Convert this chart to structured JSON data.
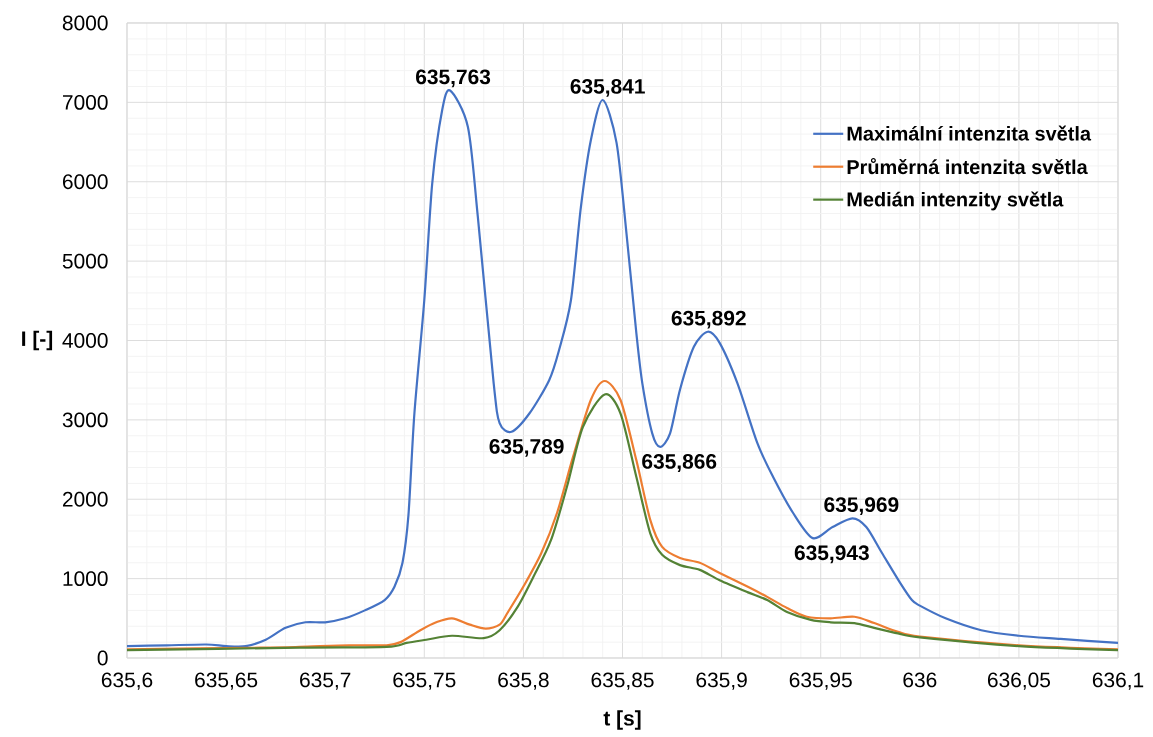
{
  "chart_data": {
    "type": "line",
    "xlabel": "t [s]",
    "ylabel": "I [-]",
    "xlim": [
      635.6,
      636.1
    ],
    "xticks": [
      {
        "value": 635.6,
        "label": "635,6"
      },
      {
        "value": 635.65,
        "label": "635,65"
      },
      {
        "value": 635.7,
        "label": "635,7"
      },
      {
        "value": 635.75,
        "label": "635,75"
      },
      {
        "value": 635.8,
        "label": "635,8"
      },
      {
        "value": 635.85,
        "label": "635,85"
      },
      {
        "value": 635.9,
        "label": "635,9"
      },
      {
        "value": 635.95,
        "label": "635,95"
      },
      {
        "value": 636,
        "label": "636"
      },
      {
        "value": 636.05,
        "label": "636,05"
      },
      {
        "value": 636.1,
        "label": "636,1"
      }
    ],
    "ylim": [
      0,
      8000
    ],
    "yticks": [
      0,
      1000,
      2000,
      3000,
      4000,
      5000,
      6000,
      7000,
      8000
    ],
    "grid": true,
    "legend": "top right",
    "series": [
      {
        "name": "Maximální intenzita světla",
        "color": "#4472c4",
        "x": [
          635.6,
          635.62,
          635.64,
          635.65,
          635.66,
          635.67,
          635.68,
          635.69,
          635.7,
          635.71,
          635.72,
          635.73,
          635.735,
          635.739,
          635.742,
          635.745,
          635.75,
          635.754,
          635.759,
          635.763,
          635.772,
          635.777,
          635.785,
          635.788,
          635.794,
          635.803,
          635.813,
          635.818,
          635.824,
          635.829,
          635.834,
          635.84,
          635.847,
          635.852,
          635.857,
          635.86,
          635.865,
          635.869,
          635.874,
          635.879,
          635.886,
          635.893,
          635.899,
          635.908,
          635.918,
          635.926,
          635.936,
          635.946,
          635.956,
          635.966,
          635.973,
          635.981,
          635.99,
          635.996,
          636.0,
          636.013,
          636.031,
          636.05,
          636.071,
          636.1
        ],
        "values": [
          150,
          160,
          170,
          150,
          150,
          230,
          380,
          450,
          450,
          500,
          600,
          730,
          900,
          1200,
          1800,
          3080,
          4510,
          5980,
          6900,
          7150,
          6690,
          5560,
          3460,
          2960,
          2850,
          3080,
          3500,
          3880,
          4510,
          5680,
          6520,
          7030,
          6490,
          5350,
          4090,
          3460,
          2830,
          2660,
          2830,
          3380,
          3920,
          4110,
          3970,
          3460,
          2710,
          2280,
          1830,
          1510,
          1650,
          1760,
          1650,
          1320,
          950,
          730,
          660,
          500,
          350,
          280,
          240,
          190
        ]
      },
      {
        "name": "Průměrná intenzita světla",
        "color": "#ed7d31",
        "x": [
          635.6,
          635.667,
          635.687,
          635.712,
          635.731,
          635.738,
          635.748,
          635.756,
          635.764,
          635.773,
          635.781,
          635.788,
          635.792,
          635.8,
          635.809,
          635.817,
          635.825,
          635.834,
          635.841,
          635.849,
          635.857,
          635.864,
          635.87,
          635.879,
          635.889,
          635.899,
          635.913,
          635.923,
          635.933,
          635.943,
          635.955,
          635.967,
          635.977,
          635.989,
          636.0,
          636.05,
          636.1
        ],
        "values": [
          110,
          130,
          140,
          160,
          160,
          200,
          350,
          450,
          500,
          420,
          370,
          420,
          570,
          900,
          1320,
          1830,
          2530,
          3250,
          3490,
          3250,
          2490,
          1740,
          1400,
          1260,
          1200,
          1070,
          900,
          770,
          630,
          520,
          500,
          520,
          440,
          330,
          270,
          160,
          110
        ]
      },
      {
        "name": "Medián intenzity světla",
        "color": "#548235",
        "x": [
          635.6,
          635.687,
          635.731,
          635.741,
          635.751,
          635.764,
          635.78,
          635.788,
          635.797,
          635.805,
          635.814,
          635.822,
          635.83,
          635.841,
          635.849,
          635.857,
          635.864,
          635.87,
          635.879,
          635.889,
          635.899,
          635.913,
          635.923,
          635.933,
          635.945,
          635.955,
          635.967,
          635.977,
          635.989,
          636.0,
          636.05,
          636.1
        ],
        "values": [
          100,
          130,
          140,
          190,
          230,
          280,
          250,
          350,
          640,
          1020,
          1490,
          2160,
          2910,
          3320,
          3080,
          2280,
          1570,
          1300,
          1170,
          1110,
          980,
          830,
          730,
          580,
          480,
          450,
          440,
          380,
          310,
          260,
          150,
          100
        ]
      }
    ],
    "annotations": [
      {
        "text": "635,763",
        "x": 635.763,
        "y": 7150
      },
      {
        "text": "635,789",
        "x": 635.789,
        "y": 2850
      },
      {
        "text": "635,841",
        "x": 635.841,
        "y": 7030
      },
      {
        "text": "635,866",
        "x": 635.866,
        "y": 2660
      },
      {
        "text": "635,892",
        "x": 635.892,
        "y": 4110
      },
      {
        "text": "635,943",
        "x": 635.943,
        "y": 1510
      },
      {
        "text": "635,969",
        "x": 635.969,
        "y": 1760
      }
    ]
  }
}
